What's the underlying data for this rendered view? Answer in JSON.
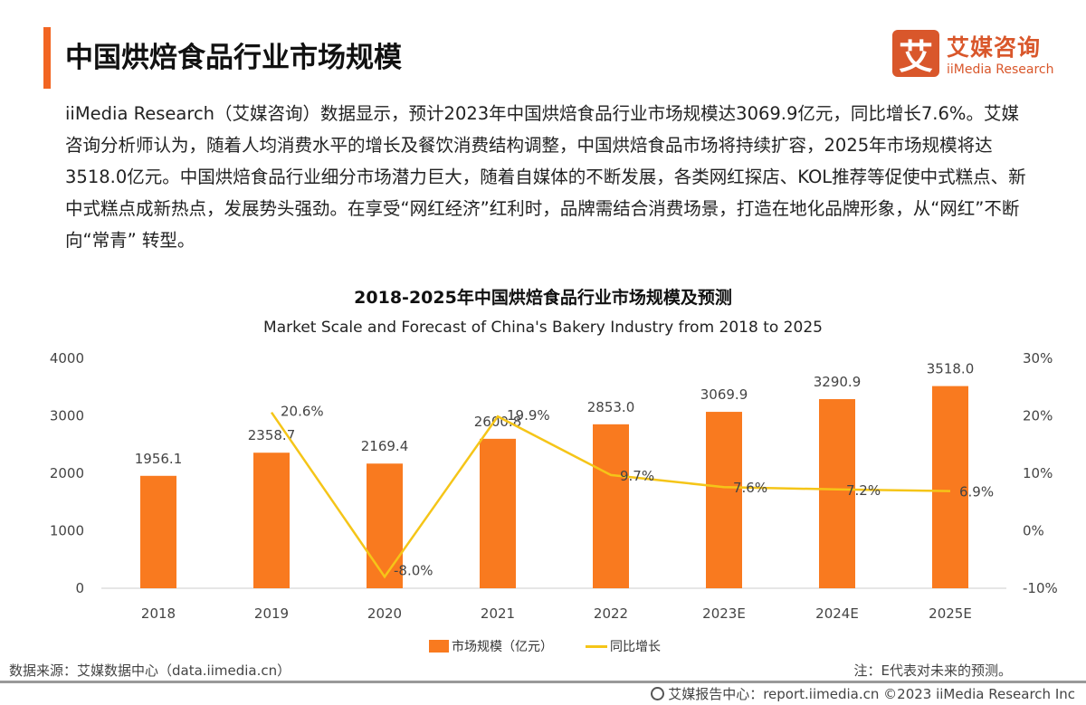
{
  "header": {
    "title": "中国烘焙食品行业市场规模",
    "logo_mark": "艾",
    "logo_cn": "艾媒咨询",
    "logo_en": "iiMedia Research"
  },
  "paragraph": "iiMedia Research（艾媒咨询）数据显示，预计2023年中国烘焙食品行业市场规模达3069.9亿元，同比增长7.6%。艾媒咨询分析师认为，随着人均消费水平的增长及餐饮消费结构调整，中国烘焙食品市场将持续扩容，2025年市场规模将达3518.0亿元。中国烘焙食品行业细分市场潜力巨大，随着自媒体的不断发展，各类网红探店、KOL推荐等促使中式糕点、新中式糕点成新热点，发展势头强劲。在享受“网红经济”红利时，品牌需结合消费场景，打造在地化品牌形象，从“网红”不断向“常青” 转型。",
  "chart_data": {
    "type": "bar+line",
    "title": "2018-2025年中国烘焙食品行业市场规模及预测",
    "subtitle": "Market Scale and Forecast of China's Bakery Industry from 2018 to 2025",
    "categories": [
      "2018",
      "2019",
      "2020",
      "2021",
      "2022",
      "2023E",
      "2024E",
      "2025E"
    ],
    "series": [
      {
        "name": "市场规模（亿元）",
        "type": "bar",
        "axis": "left",
        "color": "#f97a1f",
        "values": [
          1956.1,
          2358.7,
          2169.4,
          2600.8,
          2853.0,
          3069.9,
          3290.9,
          3518.0
        ],
        "labels": [
          "1956.1",
          "2358.7",
          "2169.4",
          "2600.8",
          "2853.0",
          "3069.9",
          "3290.9",
          "3518.0"
        ]
      },
      {
        "name": "同比增长",
        "type": "line",
        "axis": "right",
        "color": "#f5c518",
        "values": [
          null,
          20.6,
          -8.0,
          19.9,
          9.7,
          7.6,
          7.2,
          6.9
        ],
        "labels": [
          "",
          "20.6%",
          "-8.0%",
          "19.9%",
          "9.7%",
          "7.6%",
          "7.2%",
          "6.9%"
        ]
      }
    ],
    "yleft": {
      "min": 0,
      "max": 4000,
      "ticks": [
        "0",
        "1000",
        "2000",
        "3000",
        "4000"
      ]
    },
    "yright": {
      "min": -10,
      "max": 30,
      "ticks": [
        "-10%",
        "0%",
        "10%",
        "20%",
        "30%"
      ]
    },
    "legend_position": "bottom"
  },
  "footer": {
    "source": "数据来源：艾媒数据中心（data.iimedia.cn）",
    "note": "注：E代表对未来的预测。",
    "credit": "艾媒报告中心：report.iimedia.cn  ©2023  iiMedia Research Inc"
  }
}
